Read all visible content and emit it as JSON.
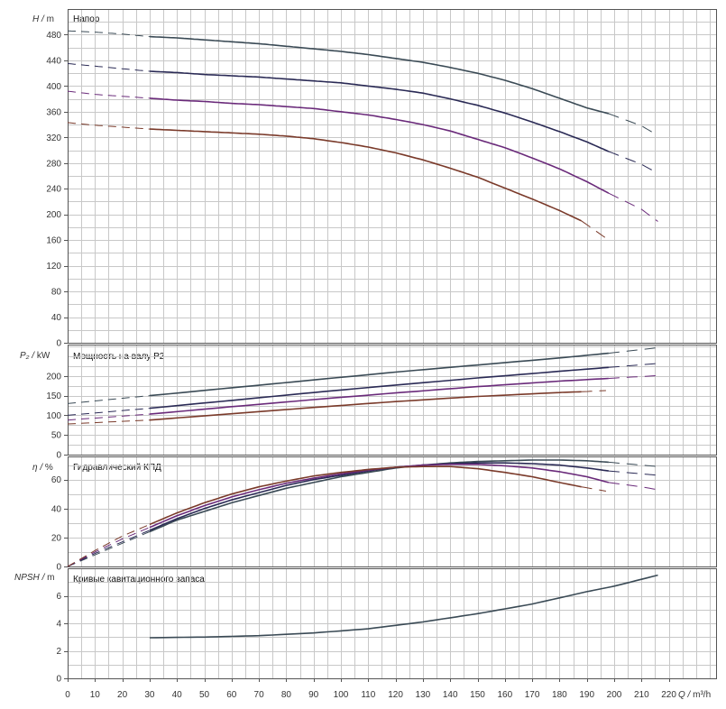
{
  "chart_data": [
    {
      "type": "line",
      "panel_id": "head",
      "title": "Напор",
      "ylabel_var": "H",
      "ylabel_unit": "m",
      "ylim": [
        0,
        520
      ],
      "yticks": [
        0,
        40,
        80,
        120,
        160,
        200,
        240,
        280,
        320,
        360,
        400,
        440,
        480
      ],
      "series": [
        {
          "color": "#3a4a55",
          "solid_range": [
            30,
            198
          ],
          "points": [
            [
              0,
              486
            ],
            [
              10,
              484
            ],
            [
              20,
              481
            ],
            [
              30,
              477
            ],
            [
              40,
              475
            ],
            [
              50,
              472
            ],
            [
              60,
              469
            ],
            [
              70,
              466
            ],
            [
              80,
              462
            ],
            [
              90,
              458
            ],
            [
              100,
              454
            ],
            [
              110,
              449
            ],
            [
              120,
              443
            ],
            [
              130,
              437
            ],
            [
              140,
              429
            ],
            [
              150,
              420
            ],
            [
              160,
              409
            ],
            [
              170,
              396
            ],
            [
              180,
              381
            ],
            [
              190,
              366
            ],
            [
              198,
              357
            ],
            [
              210,
              338
            ],
            [
              216,
              323
            ]
          ]
        },
        {
          "color": "#2a2a55",
          "solid_range": [
            30,
            198
          ],
          "points": [
            [
              0,
              435
            ],
            [
              10,
              431
            ],
            [
              20,
              427
            ],
            [
              30,
              423
            ],
            [
              40,
              421
            ],
            [
              50,
              418
            ],
            [
              60,
              416
            ],
            [
              70,
              414
            ],
            [
              80,
              411
            ],
            [
              90,
              408
            ],
            [
              100,
              405
            ],
            [
              110,
              400
            ],
            [
              120,
              395
            ],
            [
              130,
              389
            ],
            [
              140,
              380
            ],
            [
              150,
              370
            ],
            [
              160,
              358
            ],
            [
              170,
              344
            ],
            [
              180,
              329
            ],
            [
              190,
              313
            ],
            [
              198,
              298
            ],
            [
              210,
              278
            ],
            [
              216,
              264
            ]
          ]
        },
        {
          "color": "#6a2a7a",
          "solid_range": [
            30,
            198
          ],
          "points": [
            [
              0,
              392
            ],
            [
              10,
              387
            ],
            [
              20,
              384
            ],
            [
              30,
              381
            ],
            [
              40,
              378
            ],
            [
              50,
              376
            ],
            [
              60,
              373
            ],
            [
              70,
              371
            ],
            [
              80,
              368
            ],
            [
              90,
              365
            ],
            [
              100,
              360
            ],
            [
              110,
              355
            ],
            [
              120,
              348
            ],
            [
              130,
              340
            ],
            [
              140,
              330
            ],
            [
              150,
              317
            ],
            [
              160,
              304
            ],
            [
              170,
              288
            ],
            [
              180,
              271
            ],
            [
              190,
              251
            ],
            [
              198,
              233
            ],
            [
              210,
              208
            ],
            [
              216,
              189
            ]
          ]
        },
        {
          "color": "#7a3a2a",
          "solid_range": [
            30,
            188
          ],
          "points": [
            [
              0,
              343
            ],
            [
              10,
              339
            ],
            [
              20,
              336
            ],
            [
              30,
              333
            ],
            [
              40,
              331
            ],
            [
              50,
              329
            ],
            [
              60,
              327
            ],
            [
              70,
              325
            ],
            [
              80,
              322
            ],
            [
              90,
              318
            ],
            [
              100,
              312
            ],
            [
              110,
              305
            ],
            [
              120,
              296
            ],
            [
              130,
              285
            ],
            [
              140,
              272
            ],
            [
              150,
              258
            ],
            [
              160,
              241
            ],
            [
              170,
              224
            ],
            [
              180,
              206
            ],
            [
              188,
              190
            ],
            [
              197,
              163
            ]
          ]
        }
      ]
    },
    {
      "type": "line",
      "panel_id": "power",
      "title": "Мощность на валу P2",
      "ylabel_var": "P₂",
      "ylabel_unit": "kW",
      "ylim": [
        0,
        280
      ],
      "yticks": [
        0,
        50,
        100,
        150,
        200
      ],
      "series": [
        {
          "color": "#3a4a55",
          "solid_range": [
            30,
            198
          ],
          "points": [
            [
              0,
              130
            ],
            [
              30,
              150
            ],
            [
              60,
              170
            ],
            [
              90,
              190
            ],
            [
              120,
              210
            ],
            [
              150,
              228
            ],
            [
              180,
              246
            ],
            [
              198,
              258
            ],
            [
              216,
              272
            ]
          ]
        },
        {
          "color": "#2a2a55",
          "solid_range": [
            30,
            198
          ],
          "points": [
            [
              0,
              100
            ],
            [
              30,
              118
            ],
            [
              60,
              138
            ],
            [
              90,
              158
            ],
            [
              120,
              177
            ],
            [
              150,
              195
            ],
            [
              180,
              212
            ],
            [
              198,
              222
            ],
            [
              216,
              232
            ]
          ]
        },
        {
          "color": "#6a2a7a",
          "solid_range": [
            30,
            198
          ],
          "points": [
            [
              0,
              88
            ],
            [
              30,
              103
            ],
            [
              60,
              122
            ],
            [
              90,
              140
            ],
            [
              120,
              157
            ],
            [
              150,
              173
            ],
            [
              180,
              187
            ],
            [
              198,
              194
            ],
            [
              216,
              201
            ]
          ]
        },
        {
          "color": "#7a3a2a",
          "solid_range": [
            30,
            188
          ],
          "points": [
            [
              0,
              78
            ],
            [
              30,
              88
            ],
            [
              60,
              104
            ],
            [
              90,
              120
            ],
            [
              120,
              135
            ],
            [
              150,
              148
            ],
            [
              180,
              158
            ],
            [
              188,
              160
            ],
            [
              197,
              163
            ]
          ]
        }
      ]
    },
    {
      "type": "line",
      "panel_id": "efficiency",
      "title": "Гидравлический КПД",
      "ylabel_var": "η",
      "ylabel_unit": "%",
      "ylim": [
        0,
        76
      ],
      "yticks": [
        0,
        20,
        40,
        60
      ],
      "series": [
        {
          "color": "#3a4a55",
          "solid_range": [
            30,
            198
          ],
          "points": [
            [
              0,
              0
            ],
            [
              10,
              8
            ],
            [
              20,
              16
            ],
            [
              30,
              24
            ],
            [
              40,
              32
            ],
            [
              50,
              38
            ],
            [
              60,
              44
            ],
            [
              70,
              49
            ],
            [
              80,
              54
            ],
            [
              90,
              58
            ],
            [
              100,
              62
            ],
            [
              110,
              65
            ],
            [
              120,
              68
            ],
            [
              130,
              70
            ],
            [
              140,
              71.5
            ],
            [
              150,
              72.5
            ],
            [
              160,
              73
            ],
            [
              170,
              73.5
            ],
            [
              180,
              73.5
            ],
            [
              190,
              73
            ],
            [
              198,
              72
            ],
            [
              210,
              70
            ],
            [
              216,
              69
            ]
          ]
        },
        {
          "color": "#2a2a55",
          "solid_range": [
            30,
            198
          ],
          "points": [
            [
              0,
              0
            ],
            [
              10,
              9
            ],
            [
              20,
              17
            ],
            [
              30,
              25
            ],
            [
              40,
              33
            ],
            [
              50,
              40
            ],
            [
              60,
              46
            ],
            [
              70,
              51
            ],
            [
              80,
              56
            ],
            [
              90,
              60
            ],
            [
              100,
              63
            ],
            [
              110,
              66
            ],
            [
              120,
              68.5
            ],
            [
              130,
              70
            ],
            [
              140,
              71
            ],
            [
              150,
              71.5
            ],
            [
              160,
              71.5
            ],
            [
              170,
              71
            ],
            [
              180,
              70
            ],
            [
              190,
              68
            ],
            [
              198,
              66
            ],
            [
              210,
              64
            ],
            [
              216,
              63
            ]
          ]
        },
        {
          "color": "#6a2a7a",
          "solid_range": [
            30,
            198
          ],
          "points": [
            [
              0,
              0
            ],
            [
              10,
              10
            ],
            [
              20,
              19
            ],
            [
              30,
              27
            ],
            [
              40,
              35
            ],
            [
              50,
              42
            ],
            [
              60,
              48
            ],
            [
              70,
              53
            ],
            [
              80,
              57.5
            ],
            [
              90,
              61
            ],
            [
              100,
              64
            ],
            [
              110,
              66.5
            ],
            [
              120,
              68.5
            ],
            [
              130,
              70
            ],
            [
              140,
              70.5
            ],
            [
              150,
              70.5
            ],
            [
              160,
              69.5
            ],
            [
              170,
              68
            ],
            [
              180,
              65.5
            ],
            [
              190,
              62
            ],
            [
              198,
              58
            ],
            [
              210,
              55
            ],
            [
              216,
              53
            ]
          ]
        },
        {
          "color": "#7a3a2a",
          "solid_range": [
            30,
            188
          ],
          "points": [
            [
              0,
              0
            ],
            [
              10,
              11
            ],
            [
              20,
              21
            ],
            [
              30,
              29
            ],
            [
              40,
              37
            ],
            [
              50,
              44
            ],
            [
              60,
              50
            ],
            [
              70,
              55
            ],
            [
              80,
              59
            ],
            [
              90,
              62.5
            ],
            [
              100,
              65
            ],
            [
              110,
              67
            ],
            [
              120,
              68.5
            ],
            [
              130,
              69
            ],
            [
              140,
              69
            ],
            [
              150,
              67.5
            ],
            [
              160,
              65
            ],
            [
              170,
              62
            ],
            [
              180,
              58
            ],
            [
              188,
              55
            ],
            [
              197,
              52
            ]
          ]
        }
      ]
    },
    {
      "type": "line",
      "panel_id": "npsh",
      "title": "Кривые кавитационного запаса",
      "ylabel_var": "NPSH",
      "ylabel_unit": "m",
      "ylim": [
        0,
        8
      ],
      "yticks": [
        0,
        2,
        4,
        6
      ],
      "xlabel_var": "Q",
      "xlabel_unit": "m³/h",
      "xlim": [
        0,
        238
      ],
      "xticks": [
        0,
        10,
        20,
        30,
        40,
        50,
        60,
        70,
        80,
        90,
        100,
        110,
        120,
        130,
        140,
        150,
        160,
        170,
        180,
        190,
        200,
        210,
        220
      ],
      "series": [
        {
          "color": "#3a4a55",
          "solid_range": [
            30,
            216
          ],
          "points": [
            [
              30,
              2.95
            ],
            [
              50,
              3.0
            ],
            [
              70,
              3.1
            ],
            [
              90,
              3.3
            ],
            [
              110,
              3.6
            ],
            [
              130,
              4.1
            ],
            [
              150,
              4.7
            ],
            [
              170,
              5.4
            ],
            [
              190,
              6.3
            ],
            [
              200,
              6.7
            ],
            [
              216,
              7.5
            ]
          ]
        }
      ]
    }
  ]
}
